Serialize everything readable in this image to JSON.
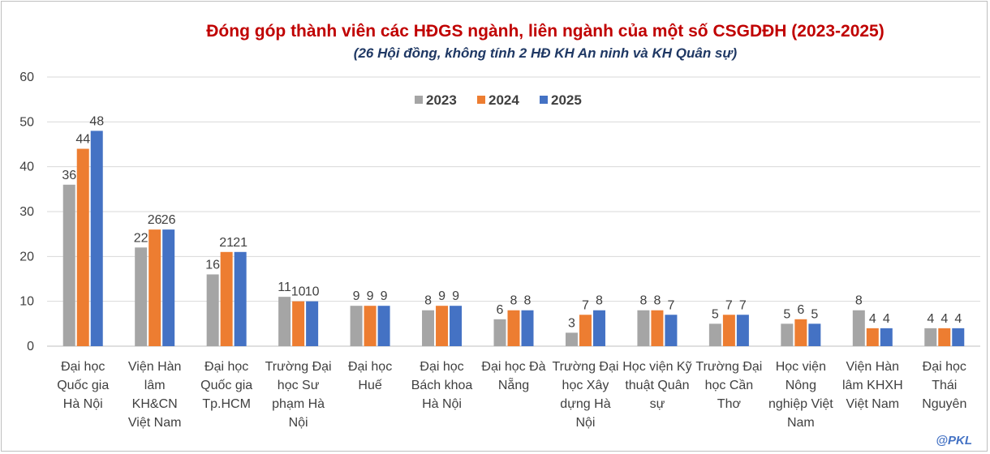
{
  "chart_data": {
    "type": "bar",
    "title": "Đóng góp thành viên các HĐGS ngành, liên ngành của một số CSGDĐH (2023-2025)",
    "subtitle": "(26 Hội đồng, không tính 2 HĐ KH An ninh và KH Quân sự)",
    "xlabel": "",
    "ylabel": "",
    "ylim": [
      0,
      60
    ],
    "yticks": [
      "0",
      "10",
      "20",
      "30",
      "40",
      "50",
      "60"
    ],
    "grid": true,
    "legend_position": "top-center",
    "categories": [
      "Đại học Quốc gia Hà Nội",
      "Viện Hàn lâm KH&CN Việt Nam",
      "Đại học Quốc gia Tp.HCM",
      "Trường Đại học Sư phạm Hà Nội",
      "Đại học Huế",
      "Đại học Bách khoa Hà Nội",
      "Đại học Đà Nẵng",
      "Trường Đại học Xây dựng Hà Nội",
      "Học viện Kỹ thuật Quân sự",
      "Trường Đại học Cần Thơ",
      "Học viện Nông nghiệp Việt Nam",
      "Viện Hàn lâm KHXH Việt Nam",
      "Đại học Thái Nguyên"
    ],
    "category_lines": [
      [
        "Đại học",
        "Quốc gia",
        "Hà Nội"
      ],
      [
        "Viện Hàn",
        "lâm",
        "KH&CN",
        "Việt Nam"
      ],
      [
        "Đại học",
        "Quốc gia",
        "Tp.HCM"
      ],
      [
        "Trường Đại",
        "học Sư",
        "phạm Hà",
        "Nội"
      ],
      [
        "Đại học",
        "Huế"
      ],
      [
        "Đại học",
        "Bách khoa",
        "Hà Nội"
      ],
      [
        "Đại học Đà",
        "Nẵng"
      ],
      [
        "Trường Đại",
        "học Xây",
        "dựng Hà",
        "Nội"
      ],
      [
        "Học viện Kỹ",
        "thuật Quân",
        "sự"
      ],
      [
        "Trường Đại",
        "học Cần",
        "Thơ"
      ],
      [
        "Học viện",
        "Nông",
        "nghiệp Việt",
        "Nam"
      ],
      [
        "Viện Hàn",
        "lâm KHXH",
        "Việt Nam"
      ],
      [
        "Đại học",
        "Thái",
        "Nguyên"
      ]
    ],
    "series": [
      {
        "name": "2023",
        "color": "#a5a5a5",
        "values": [
          36,
          22,
          16,
          11,
          9,
          8,
          6,
          3,
          8,
          5,
          5,
          8,
          4
        ]
      },
      {
        "name": "2024",
        "color": "#ed7d31",
        "values": [
          44,
          26,
          21,
          10,
          9,
          9,
          8,
          7,
          8,
          7,
          6,
          4,
          4
        ]
      },
      {
        "name": "2025",
        "color": "#4472c4",
        "values": [
          48,
          26,
          21,
          10,
          9,
          9,
          8,
          8,
          7,
          7,
          5,
          4,
          4
        ]
      }
    ]
  },
  "watermark": "@PKL"
}
